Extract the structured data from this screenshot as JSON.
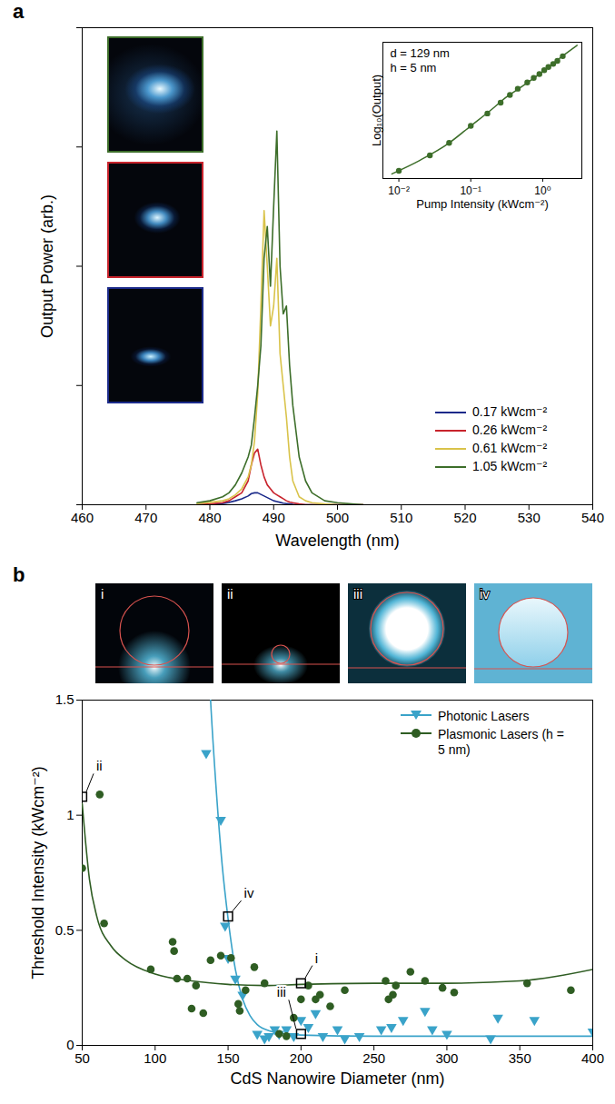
{
  "chart_data": [
    {
      "type": "line",
      "panel": "a",
      "x_label": "Wavelength (nm)",
      "y_label": "Output Power (arb.)",
      "xlim": [
        460,
        540
      ],
      "xticks": [
        460,
        470,
        480,
        490,
        500,
        510,
        520,
        530,
        540
      ],
      "ylim": [
        0,
        120
      ],
      "yticks": [
        0,
        30,
        60,
        90,
        120
      ],
      "tick_labels": "x",
      "legend": "bottom-right",
      "x": [
        478,
        480,
        482,
        483,
        484,
        485,
        486,
        486.5,
        487,
        487.5,
        488,
        488.5,
        489,
        489.5,
        490,
        490.5,
        491,
        491.5,
        492,
        492.5,
        493,
        494,
        495,
        496,
        498,
        500,
        504
      ],
      "series": [
        {
          "name": "0.17 kWcm⁻²",
          "color": "#1b2a8a",
          "values": [
            0,
            0.1,
            0.3,
            0.6,
            1,
            1.5,
            2.2,
            2.8,
            3,
            3,
            2.6,
            2.2,
            1.8,
            1.4,
            1,
            0.8,
            0.6,
            0.4,
            0.3,
            0.2,
            0.1,
            0,
            0,
            0,
            0,
            0,
            0
          ]
        },
        {
          "name": "0.26 kWcm⁻²",
          "color": "#c8232c",
          "values": [
            0,
            0.2,
            0.5,
            1,
            2,
            3,
            6,
            10,
            13,
            14,
            10,
            7,
            5,
            4,
            3,
            2.5,
            2,
            1.5,
            1,
            0.7,
            0.5,
            0.2,
            0,
            0,
            0,
            0,
            0
          ]
        },
        {
          "name": "0.61 kWcm⁻²",
          "color": "#d9c34a",
          "values": [
            0.3,
            0.6,
            1,
            1.5,
            2.5,
            4,
            7,
            10,
            16,
            28,
            50,
            74,
            60,
            45,
            50,
            62,
            38,
            30,
            22,
            12,
            6,
            2,
            1,
            0.5,
            0.2,
            0,
            0
          ]
        },
        {
          "name": "1.05 kWcm⁻²",
          "color": "#3d6e2a",
          "values": [
            0.5,
            1,
            2,
            3,
            5,
            8,
            12,
            15,
            22,
            30,
            40,
            62,
            70,
            55,
            75,
            94,
            60,
            48,
            50,
            35,
            25,
            12,
            6,
            3,
            1,
            0.5,
            0
          ]
        }
      ]
    },
    {
      "type": "scatter",
      "x_label": "Pump Intensity (kWcm⁻²)",
      "y_label": "Log₁₀(Output)",
      "annotations": [
        "d = 129 nm",
        "h = 5 nm"
      ],
      "log": "x",
      "xlim": [
        0.006,
        3.5
      ],
      "xticks": [
        {
          "value": 0.01,
          "label": "10⁻²"
        },
        {
          "value": 0.1,
          "label": "10⁻¹"
        },
        {
          "value": 1,
          "label": "10⁰"
        }
      ],
      "ylim": [
        0.5,
        9.3
      ],
      "yticks": [],
      "tick_labels": "x",
      "series": [
        {
          "color": "#3d6e2a",
          "marker": "circle",
          "x": [
            0.01,
            0.027,
            0.05,
            0.1,
            0.17,
            0.26,
            0.35,
            0.45,
            0.61,
            0.75,
            0.9,
            1.05,
            1.2,
            1.4,
            1.6,
            1.9
          ],
          "values": [
            1.0,
            2.0,
            2.8,
            3.9,
            4.7,
            5.4,
            5.9,
            6.3,
            6.7,
            7.0,
            7.25,
            7.5,
            7.7,
            7.9,
            8.1,
            8.4
          ],
          "fit": {
            "x": [
              0.008,
              0.02,
              0.05,
              0.1,
              0.2,
              0.3,
              0.5,
              1,
              2,
              3
            ],
            "values": [
              0.8,
              1.7,
              2.8,
              3.9,
              5.0,
              5.7,
              6.4,
              7.4,
              8.5,
              9.1
            ]
          }
        }
      ]
    },
    {
      "type": "scatter",
      "panel": "b",
      "x_label": "CdS Nanowire Diameter (nm)",
      "y_label": "Threshold Intensity (kWcm⁻²)",
      "xlim": [
        50,
        400
      ],
      "xticks": [
        50,
        100,
        150,
        200,
        250,
        300,
        350,
        400
      ],
      "ylim": [
        0,
        1.5
      ],
      "yticks": [
        0,
        0.5,
        1,
        1.5
      ],
      "legend": "top-right",
      "annotations": [
        {
          "text": "i",
          "x": 200,
          "y": 0.27
        },
        {
          "text": "ii",
          "x": 50,
          "y": 1.08
        },
        {
          "text": "iii",
          "x": 200,
          "y": 0.05
        },
        {
          "text": "iv",
          "x": 150,
          "y": 0.56
        }
      ],
      "series": [
        {
          "name": "Photonic Lasers",
          "color": "#3aa3c9",
          "marker": "triangle-down",
          "x": [
            135,
            145,
            148,
            150,
            155,
            160,
            170,
            175,
            178,
            182,
            185,
            190,
            195,
            200,
            205,
            210,
            215,
            225,
            230,
            240,
            255,
            262,
            270,
            285,
            290,
            300,
            330,
            335,
            360,
            400
          ],
          "values": [
            1.27,
            0.98,
            0.52,
            0.38,
            0.29,
            0.22,
            0.05,
            0.03,
            0.04,
            0.07,
            0.05,
            0.07,
            0.04,
            0.11,
            0.08,
            0.14,
            0.04,
            0.07,
            0.03,
            0.04,
            0.07,
            0.08,
            0.11,
            0.15,
            0.07,
            0.05,
            0.03,
            0.12,
            0.11,
            0.06
          ],
          "fit": {
            "x": [
              133,
              138,
              142,
              146,
              150,
              155,
              160,
              165,
              170,
              180,
              190,
              200,
              250,
              300,
              400
            ],
            "values": [
              2.2,
              1.5,
              1.1,
              0.78,
              0.55,
              0.33,
              0.2,
              0.13,
              0.09,
              0.06,
              0.05,
              0.045,
              0.04,
              0.04,
              0.04
            ]
          }
        },
        {
          "name": "Plasmonic Lasers (h = 5 nm)",
          "color": "#2f5d23",
          "marker": "circle",
          "x": [
            50,
            62,
            65,
            97,
            112,
            113,
            115,
            122,
            125,
            128,
            133,
            138,
            145,
            152,
            157,
            158,
            162,
            168,
            175,
            185,
            190,
            195,
            200,
            205,
            210,
            213,
            220,
            230,
            258,
            260,
            263,
            265,
            275,
            285,
            297,
            305,
            355,
            385
          ],
          "values": [
            0.77,
            1.09,
            0.53,
            0.33,
            0.45,
            0.41,
            0.29,
            0.29,
            0.16,
            0.26,
            0.14,
            0.37,
            0.39,
            0.38,
            0.18,
            0.15,
            0.24,
            0.34,
            0.27,
            0.05,
            0.04,
            0.12,
            0.2,
            0.26,
            0.2,
            0.22,
            0.17,
            0.24,
            0.28,
            0.2,
            0.22,
            0.26,
            0.32,
            0.28,
            0.25,
            0.23,
            0.27,
            0.24
          ],
          "fit": {
            "x": [
              50,
              55,
              60,
              70,
              80,
              100,
              125,
              150,
              175,
              200,
              250,
              300,
              350,
              375,
              400
            ],
            "values": [
              1.05,
              0.72,
              0.56,
              0.43,
              0.37,
              0.31,
              0.28,
              0.265,
              0.26,
              0.265,
              0.27,
              0.27,
              0.28,
              0.3,
              0.33
            ]
          }
        }
      ]
    }
  ]
}
